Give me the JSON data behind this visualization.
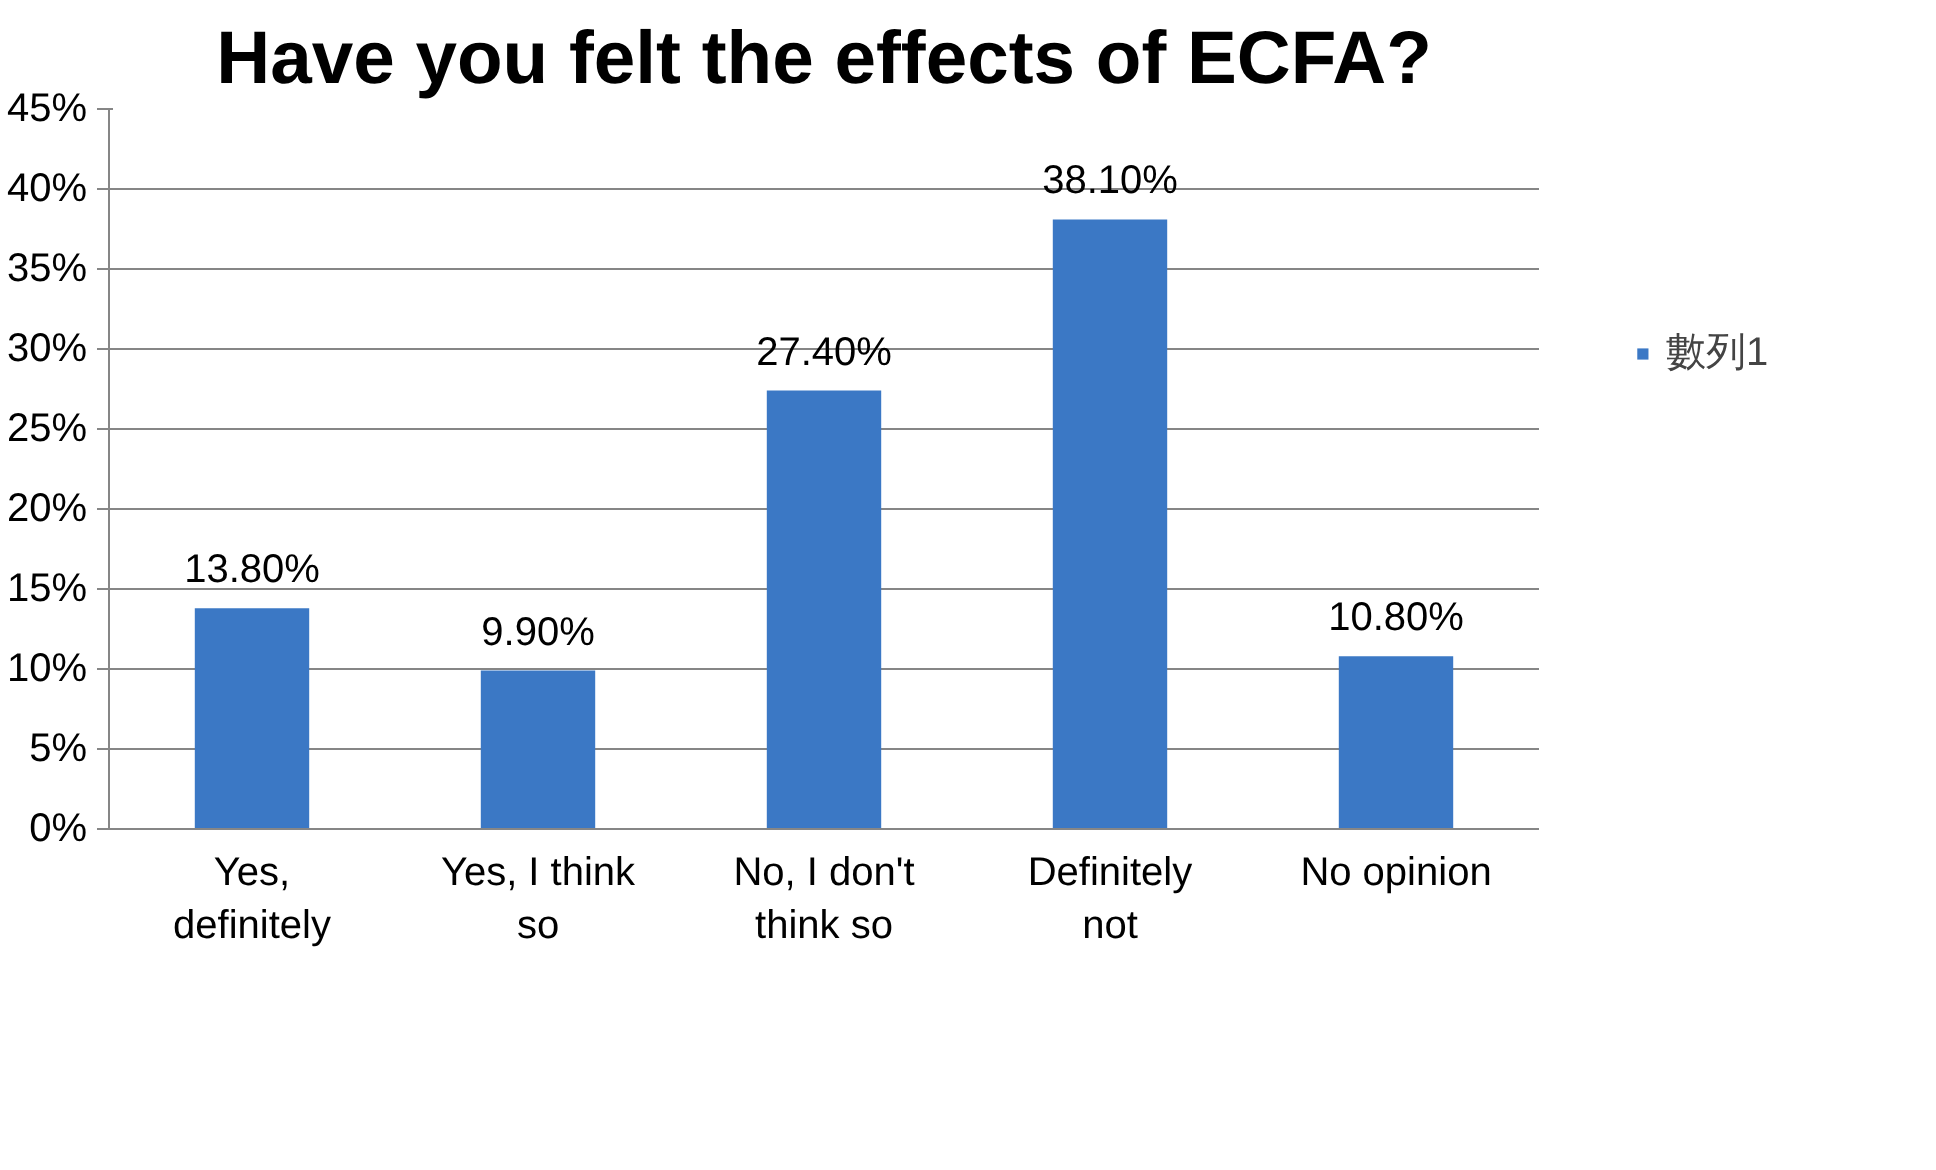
{
  "chart_data": {
    "type": "bar",
    "title": "Have you felt the effects of ECFA?",
    "categories": [
      "Yes, definitely",
      "Yes, I think so",
      "No, I don't think so",
      "Definitely not",
      "No opinion"
    ],
    "series": [
      {
        "name": "數列1",
        "color": "#3b78c5",
        "values": [
          13.8,
          9.9,
          27.4,
          38.1,
          10.8
        ]
      }
    ],
    "value_labels": [
      "13.80%",
      "9.90%",
      "27.40%",
      "38.10%",
      "10.80%"
    ],
    "ylim": [
      0,
      45
    ],
    "yticks": [
      {
        "value": 0,
        "label": "0%"
      },
      {
        "value": 5,
        "label": "5%"
      },
      {
        "value": 10,
        "label": "10%"
      },
      {
        "value": 15,
        "label": "15%"
      },
      {
        "value": 20,
        "label": "20%"
      },
      {
        "value": 25,
        "label": "25%"
      },
      {
        "value": 30,
        "label": "30%"
      },
      {
        "value": 35,
        "label": "35%"
      },
      {
        "value": 40,
        "label": "40%"
      },
      {
        "value": 45,
        "label": "45%"
      }
    ],
    "grid": "y",
    "legend": "right"
  }
}
